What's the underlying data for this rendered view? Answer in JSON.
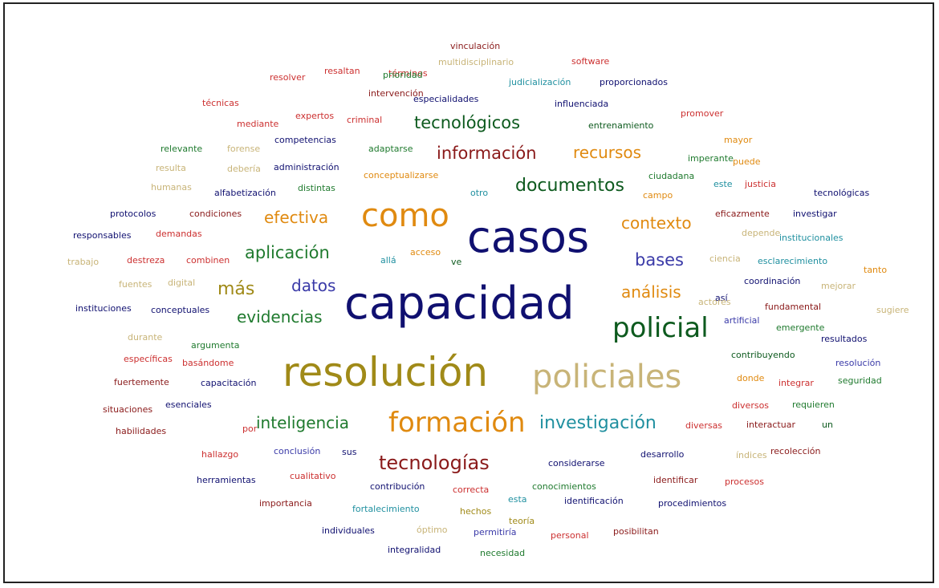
{
  "colors": {
    "navy": "#101070",
    "blue": "#3a3aa8",
    "green": "#1f7a2e",
    "darkgreen": "#0d5a1e",
    "red": "#cc3030",
    "darkred": "#8a1a1a",
    "orange": "#e08a10",
    "khaki": "#c8b478",
    "teal": "#2090a0",
    "olive": "#a08a18"
  },
  "words": [
    {
      "text": "resolución",
      "color": "olive"
    },
    {
      "text": "capacidad",
      "color": "navy"
    },
    {
      "text": "casos",
      "color": "navy"
    },
    {
      "text": "como",
      "color": "orange"
    },
    {
      "text": "policiales",
      "color": "khaki"
    },
    {
      "text": "formación",
      "color": "orange"
    },
    {
      "text": "policial",
      "color": "darkgreen"
    },
    {
      "text": "tecnologías",
      "color": "darkred"
    },
    {
      "text": "investigación",
      "color": "teal"
    },
    {
      "text": "inteligencia",
      "color": "green"
    },
    {
      "text": "documentos",
      "color": "darkgreen"
    },
    {
      "text": "información",
      "color": "darkred"
    },
    {
      "text": "tecnológicos",
      "color": "darkgreen"
    },
    {
      "text": "recursos",
      "color": "orange"
    },
    {
      "text": "efectiva",
      "color": "orange"
    },
    {
      "text": "contexto",
      "color": "orange"
    },
    {
      "text": "aplicación",
      "color": "green"
    },
    {
      "text": "evidencias",
      "color": "green"
    },
    {
      "text": "datos",
      "color": "blue"
    },
    {
      "text": "más",
      "color": "olive"
    },
    {
      "text": "bases",
      "color": "blue"
    },
    {
      "text": "análisis",
      "color": "orange"
    },
    {
      "text": "términos",
      "color": "red"
    },
    {
      "text": "vinculación",
      "color": "darkred"
    },
    {
      "text": "multidisciplinario",
      "color": "khaki"
    },
    {
      "text": "software",
      "color": "red"
    },
    {
      "text": "resolver",
      "color": "red"
    },
    {
      "text": "resaltan",
      "color": "red"
    },
    {
      "text": "prioridad",
      "color": "green"
    },
    {
      "text": "judicialización",
      "color": "teal"
    },
    {
      "text": "proporcionados",
      "color": "navy"
    },
    {
      "text": "intervención",
      "color": "darkred"
    },
    {
      "text": "especialidades",
      "color": "navy"
    },
    {
      "text": "técnicas",
      "color": "red"
    },
    {
      "text": "influenciada",
      "color": "navy"
    },
    {
      "text": "expertos",
      "color": "red"
    },
    {
      "text": "mediante",
      "color": "red"
    },
    {
      "text": "criminal",
      "color": "red"
    },
    {
      "text": "promover",
      "color": "red"
    },
    {
      "text": "entrenamiento",
      "color": "darkgreen"
    },
    {
      "text": "mayor",
      "color": "orange"
    },
    {
      "text": "relevante",
      "color": "green"
    },
    {
      "text": "forense",
      "color": "khaki"
    },
    {
      "text": "competencias",
      "color": "navy"
    },
    {
      "text": "adaptarse",
      "color": "green"
    },
    {
      "text": "imperante",
      "color": "green"
    },
    {
      "text": "puede",
      "color": "orange"
    },
    {
      "text": "resulta",
      "color": "khaki"
    },
    {
      "text": "debería",
      "color": "khaki"
    },
    {
      "text": "administración",
      "color": "navy"
    },
    {
      "text": "conceptualizarse",
      "color": "orange"
    },
    {
      "text": "ciudadana",
      "color": "green"
    },
    {
      "text": "este",
      "color": "teal"
    },
    {
      "text": "justicia",
      "color": "red"
    },
    {
      "text": "humanas",
      "color": "khaki"
    },
    {
      "text": "alfabetización",
      "color": "navy"
    },
    {
      "text": "distintas",
      "color": "green"
    },
    {
      "text": "otro",
      "color": "teal"
    },
    {
      "text": "campo",
      "color": "orange"
    },
    {
      "text": "tecnológicas",
      "color": "navy"
    },
    {
      "text": "protocolos",
      "color": "navy"
    },
    {
      "text": "condiciones",
      "color": "darkred"
    },
    {
      "text": "eficazmente",
      "color": "darkred"
    },
    {
      "text": "investigar",
      "color": "navy"
    },
    {
      "text": "responsables",
      "color": "navy"
    },
    {
      "text": "demandas",
      "color": "red"
    },
    {
      "text": "depende",
      "color": "khaki"
    },
    {
      "text": "institucionales",
      "color": "teal"
    },
    {
      "text": "trabajo",
      "color": "khaki"
    },
    {
      "text": "destreza",
      "color": "red"
    },
    {
      "text": "combinen",
      "color": "red"
    },
    {
      "text": "allá",
      "color": "teal"
    },
    {
      "text": "acceso",
      "color": "orange"
    },
    {
      "text": "ve",
      "color": "darkgreen"
    },
    {
      "text": "ciencia",
      "color": "khaki"
    },
    {
      "text": "esclarecimiento",
      "color": "teal"
    },
    {
      "text": "tanto",
      "color": "orange"
    },
    {
      "text": "fuentes",
      "color": "khaki"
    },
    {
      "text": "digital",
      "color": "khaki"
    },
    {
      "text": "así",
      "color": "navy"
    },
    {
      "text": "coordinación",
      "color": "navy"
    },
    {
      "text": "mejorar",
      "color": "khaki"
    },
    {
      "text": "actores",
      "color": "khaki"
    },
    {
      "text": "instituciones",
      "color": "navy"
    },
    {
      "text": "conceptuales",
      "color": "navy"
    },
    {
      "text": "fundamental",
      "color": "darkred"
    },
    {
      "text": "sugiere",
      "color": "khaki"
    },
    {
      "text": "artificial",
      "color": "blue"
    },
    {
      "text": "emergente",
      "color": "green"
    },
    {
      "text": "durante",
      "color": "khaki"
    },
    {
      "text": "argumenta",
      "color": "green"
    },
    {
      "text": "resultados",
      "color": "navy"
    },
    {
      "text": "específicas",
      "color": "red"
    },
    {
      "text": "basándome",
      "color": "red"
    },
    {
      "text": "contribuyendo",
      "color": "darkgreen"
    },
    {
      "text": "resolución",
      "color": "blue"
    },
    {
      "text": "fuertemente",
      "color": "darkred"
    },
    {
      "text": "capacitación",
      "color": "navy"
    },
    {
      "text": "donde",
      "color": "orange"
    },
    {
      "text": "integrar",
      "color": "red"
    },
    {
      "text": "seguridad",
      "color": "green"
    },
    {
      "text": "situaciones",
      "color": "darkred"
    },
    {
      "text": "esenciales",
      "color": "navy"
    },
    {
      "text": "diversos",
      "color": "red"
    },
    {
      "text": "requieren",
      "color": "green"
    },
    {
      "text": "habilidades",
      "color": "darkred"
    },
    {
      "text": "por",
      "color": "red"
    },
    {
      "text": "diversas",
      "color": "red"
    },
    {
      "text": "interactuar",
      "color": "darkred"
    },
    {
      "text": "un",
      "color": "darkgreen"
    },
    {
      "text": "hallazgo",
      "color": "red"
    },
    {
      "text": "conclusión",
      "color": "blue"
    },
    {
      "text": "sus",
      "color": "navy"
    },
    {
      "text": "desarrollo",
      "color": "navy"
    },
    {
      "text": "índices",
      "color": "khaki"
    },
    {
      "text": "recolección",
      "color": "darkred"
    },
    {
      "text": "cualitativo",
      "color": "red"
    },
    {
      "text": "considerarse",
      "color": "navy"
    },
    {
      "text": "herramientas",
      "color": "navy"
    },
    {
      "text": "identificar",
      "color": "darkred"
    },
    {
      "text": "procesos",
      "color": "red"
    },
    {
      "text": "contribución",
      "color": "navy"
    },
    {
      "text": "correcta",
      "color": "red"
    },
    {
      "text": "conocimientos",
      "color": "green"
    },
    {
      "text": "importancia",
      "color": "darkred"
    },
    {
      "text": "fortalecimiento",
      "color": "teal"
    },
    {
      "text": "hechos",
      "color": "olive"
    },
    {
      "text": "esta",
      "color": "teal"
    },
    {
      "text": "identificación",
      "color": "navy"
    },
    {
      "text": "procedimientos",
      "color": "navy"
    },
    {
      "text": "teoría",
      "color": "olive"
    },
    {
      "text": "individuales",
      "color": "navy"
    },
    {
      "text": "óptimo",
      "color": "khaki"
    },
    {
      "text": "permitiría",
      "color": "blue"
    },
    {
      "text": "personal",
      "color": "red"
    },
    {
      "text": "posibilitan",
      "color": "darkred"
    },
    {
      "text": "integralidad",
      "color": "navy"
    },
    {
      "text": "necesidad",
      "color": "green"
    }
  ]
}
